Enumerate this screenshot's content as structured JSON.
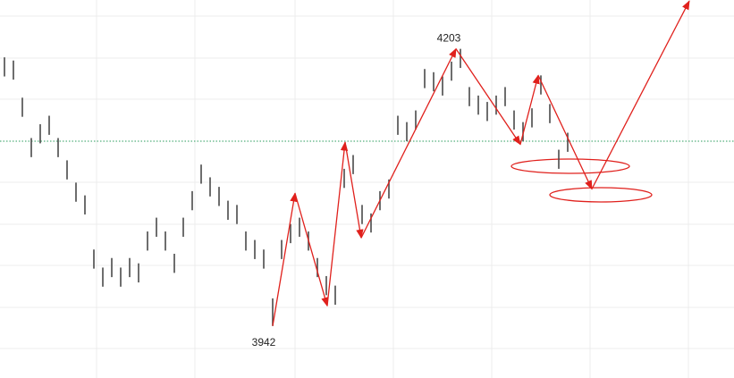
{
  "chart_data": {
    "type": "range-bar",
    "xlim": [
      -0.5,
      81.6
    ],
    "ylim": [
      3893,
      4249
    ],
    "reference_line": 4116,
    "bar_color": "#4a4a4a",
    "high": [
      4195,
      4192,
      4157,
      4119,
      4132,
      4140,
      4119,
      4098,
      4077,
      4065,
      4014,
      3997,
      4006,
      3997,
      4006,
      4001,
      4031,
      4044,
      4031,
      4010,
      4044,
      4069,
      4094,
      4082,
      4073,
      4060,
      4056,
      4031,
      4023,
      4014,
      3968,
      4023,
      4038,
      4044,
      4031,
      4006,
      3989,
      3980,
      4090,
      4103,
      4056,
      4048,
      4069,
      4080,
      4140,
      4134,
      4145,
      4184,
      4181,
      4177,
      4191,
      4203,
      4167,
      4159,
      4153,
      4159,
      4167,
      4145,
      4134,
      4147,
      4178,
      4151,
      4108,
      4124
    ],
    "low": [
      4177,
      4174,
      4139,
      4101,
      4114,
      4122,
      4101,
      4080,
      4059,
      4047,
      3996,
      3979,
      3988,
      3979,
      3988,
      3983,
      4013,
      4026,
      4013,
      3992,
      4026,
      4051,
      4076,
      4064,
      4055,
      4042,
      4038,
      4013,
      4005,
      3996,
      3942,
      4005,
      4020,
      4026,
      4013,
      3988,
      3971,
      3962,
      4072,
      4085,
      4038,
      4030,
      4051,
      4062,
      4122,
      4116,
      4127,
      4166,
      4163,
      4159,
      4173,
      4185,
      4149,
      4141,
      4135,
      4141,
      4149,
      4127,
      4116,
      4129,
      4160,
      4133,
      4090,
      4106
    ],
    "zigzag": {
      "color": "#e0201c",
      "x": [
        30,
        32.5,
        36.1,
        38.1,
        39.9,
        50.5,
        57.7,
        59.7,
        65.7,
        76.6
      ],
      "y": [
        3942,
        4067,
        3961,
        4115,
        4025,
        4203,
        4113,
        4178,
        4071,
        4248
      ]
    }
  }
}
